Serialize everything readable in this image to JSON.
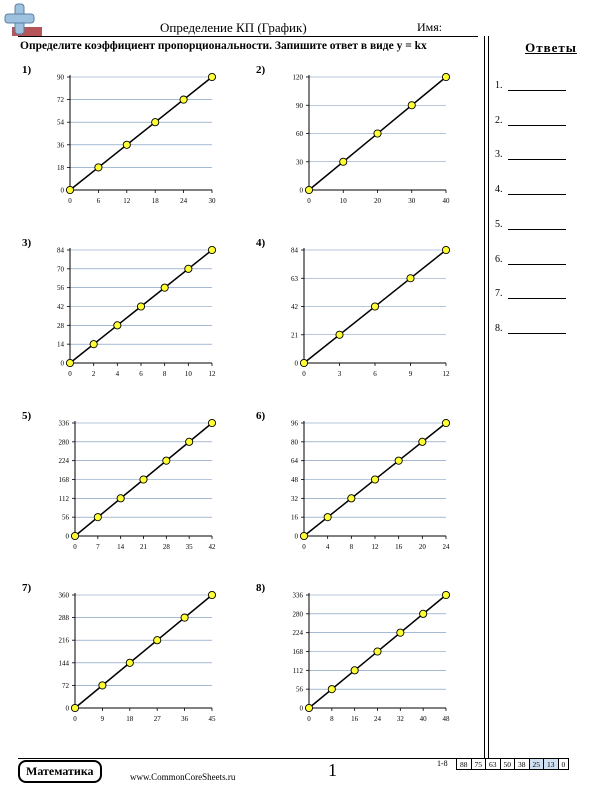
{
  "header": {
    "title": "Определение КП (График)",
    "name_label": "Имя:"
  },
  "instruction": "Определите коэффициент пропорциональности. Запишите ответ в виде y = kx",
  "answers": {
    "title": "Ответы",
    "items": [
      "1.",
      "2.",
      "3.",
      "4.",
      "5.",
      "6.",
      "7.",
      "8."
    ]
  },
  "footer": {
    "subject": "Математика",
    "website": "www.CommonCoreSheets.ru",
    "page_number": "1",
    "stats_label": "1-8",
    "stats": [
      "88",
      "75",
      "63",
      "50",
      "38",
      "25",
      "13",
      "0"
    ]
  },
  "colors": {
    "point_fill": "#ffff33",
    "gridline": "#6f8fb8",
    "logo_blue": "#9ec1e0",
    "logo_red": "#b5555a"
  },
  "chart_data": [
    {
      "type": "line",
      "label": "1)",
      "x": [
        0,
        6,
        12,
        18,
        24,
        30
      ],
      "y": [
        0,
        18,
        36,
        54,
        72,
        90
      ],
      "xticks": [
        "0",
        "6",
        "12",
        "18",
        "24",
        "30"
      ],
      "yticks": [
        "0",
        "18",
        "36",
        "54",
        "72",
        "90"
      ]
    },
    {
      "type": "line",
      "label": "2)",
      "x": [
        0,
        10,
        20,
        30,
        40
      ],
      "y": [
        0,
        30,
        60,
        90,
        120
      ],
      "xticks": [
        "0",
        "10",
        "20",
        "30",
        "40"
      ],
      "yticks": [
        "0",
        "30",
        "60",
        "90",
        "120"
      ]
    },
    {
      "type": "line",
      "label": "3)",
      "x": [
        0,
        2,
        4,
        6,
        8,
        10,
        12
      ],
      "y": [
        0,
        14,
        28,
        42,
        56,
        70,
        84
      ],
      "xticks": [
        "0",
        "2",
        "4",
        "6",
        "8",
        "10",
        "12"
      ],
      "yticks": [
        "0",
        "14",
        "28",
        "42",
        "56",
        "70",
        "84"
      ]
    },
    {
      "type": "line",
      "label": "4)",
      "x": [
        0,
        3,
        6,
        9,
        12
      ],
      "y": [
        0,
        21,
        42,
        63,
        84
      ],
      "xticks": [
        "0",
        "3",
        "6",
        "9",
        "12"
      ],
      "yticks": [
        "0",
        "21",
        "42",
        "63",
        "84"
      ]
    },
    {
      "type": "line",
      "label": "5)",
      "x": [
        0,
        7,
        14,
        21,
        28,
        35,
        42
      ],
      "y": [
        0,
        56,
        112,
        168,
        224,
        280,
        336
      ],
      "xticks": [
        "0",
        "7",
        "14",
        "21",
        "28",
        "35",
        "42"
      ],
      "yticks": [
        "0",
        "56",
        "112",
        "168",
        "224",
        "280",
        "336"
      ]
    },
    {
      "type": "line",
      "label": "6)",
      "x": [
        0,
        4,
        8,
        12,
        16,
        20,
        24
      ],
      "y": [
        0,
        16,
        32,
        48,
        64,
        80,
        96
      ],
      "xticks": [
        "0",
        "4",
        "8",
        "12",
        "16",
        "20",
        "24"
      ],
      "yticks": [
        "0",
        "16",
        "32",
        "48",
        "64",
        "80",
        "96"
      ]
    },
    {
      "type": "line",
      "label": "7)",
      "x": [
        0,
        9,
        18,
        27,
        36,
        45
      ],
      "y": [
        0,
        72,
        144,
        216,
        288,
        360
      ],
      "xticks": [
        "0",
        "9",
        "18",
        "27",
        "36",
        "45"
      ],
      "yticks": [
        "0",
        "72",
        "144",
        "216",
        "288",
        "360"
      ]
    },
    {
      "type": "line",
      "label": "8)",
      "x": [
        0,
        8,
        16,
        24,
        32,
        40,
        48
      ],
      "y": [
        0,
        56,
        112,
        168,
        224,
        280,
        336
      ],
      "xticks": [
        "0",
        "8",
        "16",
        "24",
        "32",
        "40",
        "48"
      ],
      "yticks": [
        "0",
        "56",
        "112",
        "168",
        "224",
        "280",
        "336"
      ]
    }
  ]
}
